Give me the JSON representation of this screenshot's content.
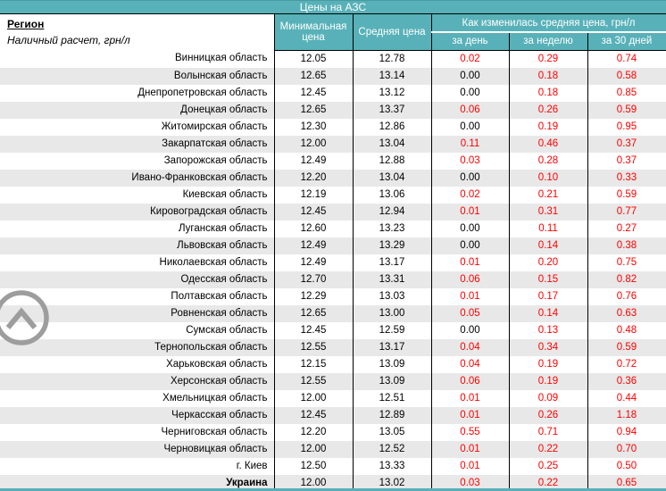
{
  "title": "Цены на АЗС",
  "header": {
    "region": "Регион",
    "region_note": "Наличный расчет, грн/л",
    "min_price": "Минимальная цена",
    "avg_price": "Средняя цена",
    "change_group": "Как изменилась средняя цена, грн/л",
    "change_day": "за день",
    "change_week": "за неделю",
    "change_30d": "за 30 дней"
  },
  "rows": [
    {
      "region": "Винницкая область",
      "min": "12.05",
      "avg": "12.78",
      "day": "0.02",
      "week": "0.29",
      "d30": "0.74"
    },
    {
      "region": "Волынская область",
      "min": "12.65",
      "avg": "13.14",
      "day": "0.00",
      "week": "0.18",
      "d30": "0.58"
    },
    {
      "region": "Днепропетровская область",
      "min": "12.45",
      "avg": "13.12",
      "day": "0.00",
      "week": "0.18",
      "d30": "0.85"
    },
    {
      "region": "Донецкая область",
      "min": "12.65",
      "avg": "13.37",
      "day": "0.06",
      "week": "0.26",
      "d30": "0.59"
    },
    {
      "region": "Житомирская область",
      "min": "12.30",
      "avg": "12.86",
      "day": "0.00",
      "week": "0.19",
      "d30": "0.95"
    },
    {
      "region": "Закарпатская область",
      "min": "12.00",
      "avg": "13.04",
      "day": "0.11",
      "week": "0.46",
      "d30": "0.37"
    },
    {
      "region": "Запорожская область",
      "min": "12.49",
      "avg": "12.88",
      "day": "0.03",
      "week": "0.28",
      "d30": "0.37"
    },
    {
      "region": "Ивано-Франковская область",
      "min": "12.20",
      "avg": "13.04",
      "day": "0.00",
      "week": "0.10",
      "d30": "0.33"
    },
    {
      "region": "Киевская область",
      "min": "12.19",
      "avg": "13.06",
      "day": "0.02",
      "week": "0.21",
      "d30": "0.59"
    },
    {
      "region": "Кировоградская область",
      "min": "12.45",
      "avg": "12.94",
      "day": "0.01",
      "week": "0.31",
      "d30": "0.77"
    },
    {
      "region": "Луганская область",
      "min": "12.60",
      "avg": "13.23",
      "day": "0.00",
      "week": "0.11",
      "d30": "0.27"
    },
    {
      "region": "Львовская область",
      "min": "12.49",
      "avg": "13.29",
      "day": "0.00",
      "week": "0.14",
      "d30": "0.38"
    },
    {
      "region": "Николаевская область",
      "min": "12.49",
      "avg": "13.17",
      "day": "0.01",
      "week": "0.20",
      "d30": "0.75"
    },
    {
      "region": "Одесская область",
      "min": "12.70",
      "avg": "13.31",
      "day": "0.06",
      "week": "0.15",
      "d30": "0.82"
    },
    {
      "region": "Полтавская область",
      "min": "12.29",
      "avg": "13.03",
      "day": "0.01",
      "week": "0.17",
      "d30": "0.76"
    },
    {
      "region": "Ровненская область",
      "min": "12.65",
      "avg": "13.00",
      "day": "0.05",
      "week": "0.14",
      "d30": "0.63"
    },
    {
      "region": "Сумская область",
      "min": "12.45",
      "avg": "12.59",
      "day": "0.00",
      "week": "0.13",
      "d30": "0.48"
    },
    {
      "region": "Тернопольская область",
      "min": "12.55",
      "avg": "13.17",
      "day": "0.04",
      "week": "0.34",
      "d30": "0.59"
    },
    {
      "region": "Харьковская область",
      "min": "12.15",
      "avg": "13.09",
      "day": "0.04",
      "week": "0.19",
      "d30": "0.72"
    },
    {
      "region": "Херсонская область",
      "min": "12.55",
      "avg": "13.09",
      "day": "0.06",
      "week": "0.19",
      "d30": "0.36"
    },
    {
      "region": "Хмельницкая область",
      "min": "12.00",
      "avg": "12.51",
      "day": "0.01",
      "week": "0.09",
      "d30": "0.44"
    },
    {
      "region": "Черкасская область",
      "min": "12.45",
      "avg": "12.89",
      "day": "0.01",
      "week": "0.26",
      "d30": "1.18"
    },
    {
      "region": "Черниговская область",
      "min": "12.20",
      "avg": "13.05",
      "day": "0.55",
      "week": "0.71",
      "d30": "0.94"
    },
    {
      "region": "Черновицкая область",
      "min": "12.00",
      "avg": "12.52",
      "day": "0.01",
      "week": "0.22",
      "d30": "0.70"
    },
    {
      "region": "г. Киев",
      "min": "12.50",
      "avg": "13.33",
      "day": "0.01",
      "week": "0.25",
      "d30": "0.50"
    },
    {
      "region": "Украина",
      "min": "12.00",
      "avg": "13.02",
      "day": "0.03",
      "week": "0.22",
      "d30": "0.65",
      "bold": true
    }
  ],
  "icons": {
    "scroll_to_top": "chevron-up-circle"
  },
  "colors": {
    "accent_teal": "#58b1b8",
    "row_alt_gray": "#e8e8e8",
    "change_red": "#ff0000",
    "scroll_icon_gray": "#9d9d9d",
    "border_black": "#000000",
    "header_text": "#ffffff"
  }
}
